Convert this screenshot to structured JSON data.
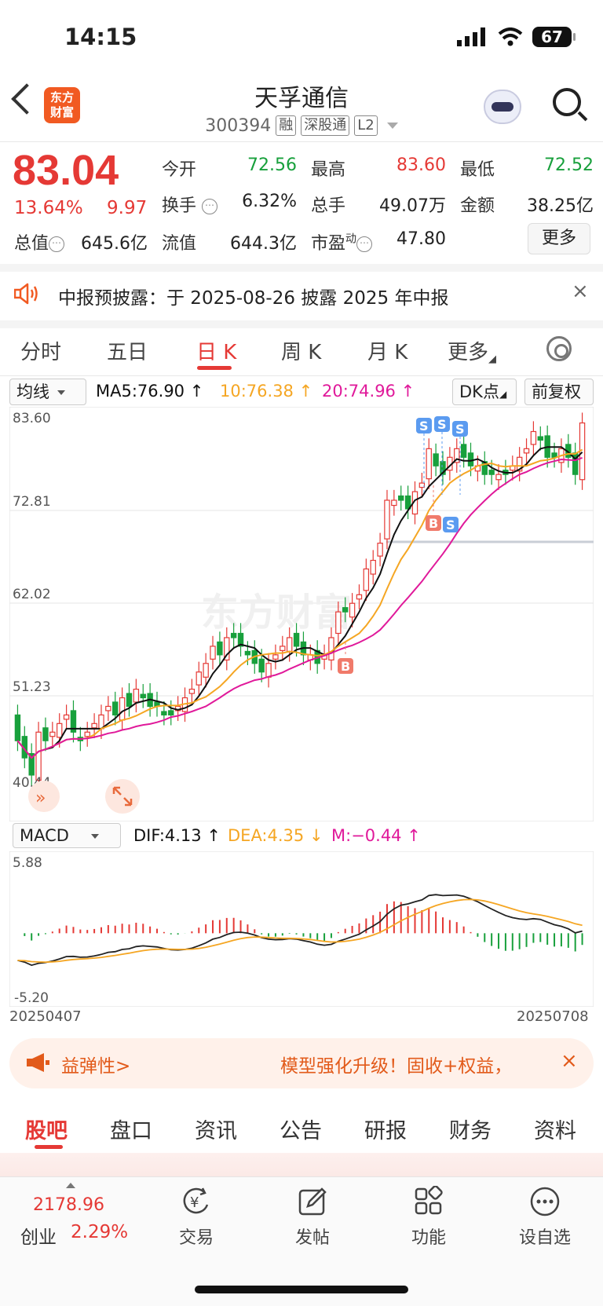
{
  "status_bar": {
    "time": "14:15",
    "battery": "67"
  },
  "header": {
    "logo_line1": "东方",
    "logo_line2": "财富",
    "title": "天孚通信",
    "code": "300394",
    "tags": [
      "融",
      "深股通",
      "L2"
    ]
  },
  "quote": {
    "price": "83.04",
    "change_pct": "13.64%",
    "change": "9.97",
    "fields": [
      {
        "label": "今开",
        "value": "72.56",
        "color": "green"
      },
      {
        "label": "最高",
        "value": "83.60",
        "color": "red"
      },
      {
        "label": "最低",
        "value": "72.52",
        "color": "green"
      },
      {
        "label": "换手",
        "value": "6.32%",
        "color": "black"
      },
      {
        "label": "总手",
        "value": "49.07万",
        "color": "black"
      },
      {
        "label": "金额",
        "value": "38.25亿",
        "color": "black"
      },
      {
        "label": "总值",
        "value": "645.6亿",
        "color": "black"
      },
      {
        "label": "流值",
        "value": "644.3亿",
        "color": "black"
      },
      {
        "label": "市盈",
        "value": "47.80",
        "color": "black"
      }
    ],
    "pe_superscript": "动",
    "more": "更多"
  },
  "notice": {
    "text": "中报预披露：于 2025-08-26 披露 2025 年中报",
    "close": "×"
  },
  "kline_tabs": [
    "分时",
    "五日",
    "日 K",
    "周 K",
    "月 K",
    "更多"
  ],
  "active_tab": "日 K",
  "ma_row": {
    "selector": "均线",
    "ma5": "MA5:76.90",
    "ma10": "10:76.38",
    "ma20": "20:74.96",
    "dk": "DK点",
    "adjust": "前复权"
  },
  "macd_row": {
    "selector": "MACD",
    "dif": "DIF:4.13",
    "dea": "DEA:4.35",
    "m": "M:−0.44"
  },
  "chart_data": {
    "type": "candlestick",
    "price_axis_labels": [
      "83.60",
      "72.81",
      "62.02",
      "51.23",
      "40.44"
    ],
    "macd_axis_labels": [
      "5.88",
      "-5.20"
    ],
    "x_start": "20250407",
    "x_end": "20250708",
    "watermark": "东方财富",
    "signal_labels": [
      "S",
      "B"
    ],
    "colors": {
      "up": "#e53935",
      "down": "#18a03c",
      "ma5": "#111111",
      "ma10": "#f5a623",
      "ma20": "#e0199a"
    }
  },
  "banner": {
    "left_text": "益弹性>",
    "right_text": "模型强化升级！固收+权益，",
    "close": "×"
  },
  "bottom_tabs": [
    "股吧",
    "盘口",
    "资讯",
    "公告",
    "研报",
    "财务",
    "资料"
  ],
  "nav": {
    "index_value": "2178.96",
    "index_name": "创业",
    "index_pct": "2.29%",
    "items": [
      "交易",
      "发帖",
      "功能",
      "设自选"
    ]
  }
}
